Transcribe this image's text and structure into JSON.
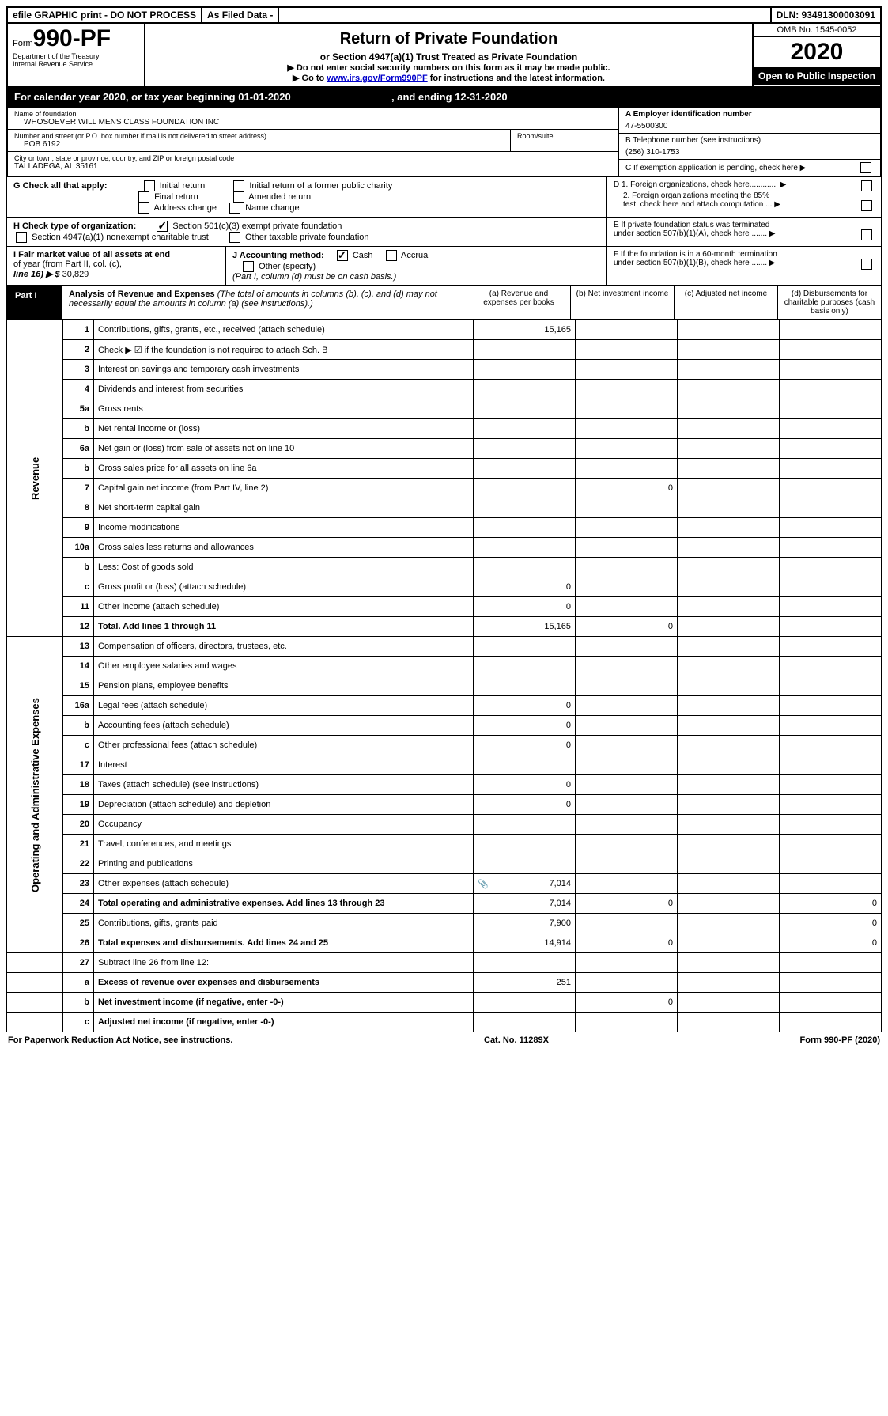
{
  "topbar": {
    "efile": "efile GRAPHIC print - DO NOT PROCESS",
    "asfiled": "As Filed Data -",
    "dln": "DLN: 93491300003091"
  },
  "header": {
    "form_prefix": "Form",
    "form_num": "990-PF",
    "dept1": "Department of the Treasury",
    "dept2": "Internal Revenue Service",
    "title": "Return of Private Foundation",
    "subtitle": "or Section 4947(a)(1) Trust Treated as Private Foundation",
    "warn": "▶ Do not enter social security numbers on this form as it may be made public.",
    "goto_pre": "▶ Go to ",
    "goto_link": "www.irs.gov/Form990PF",
    "goto_post": " for instructions and the latest information.",
    "omb": "OMB No. 1545-0052",
    "year": "2020",
    "open": "Open to Public Inspection"
  },
  "calyear": {
    "text_a": "For calendar year 2020, or tax year beginning ",
    "begin": "01-01-2020",
    "text_b": " , and ending ",
    "end": "12-31-2020"
  },
  "info": {
    "name_lbl": "Name of foundation",
    "name": "WHOSOEVER WILL MENS CLASS FOUNDATION INC",
    "addr_lbl": "Number and street (or P.O. box number if mail is not delivered to street address)",
    "addr": "POB 6192",
    "room_lbl": "Room/suite",
    "city_lbl": "City or town, state or province, country, and ZIP or foreign postal code",
    "city": "TALLADEGA, AL  35161",
    "a_lbl": "A Employer identification number",
    "a_val": "47-5500300",
    "b_lbl": "B Telephone number (see instructions)",
    "b_val": "(256) 310-1753",
    "c_lbl": "C If exemption application is pending, check here ▶"
  },
  "g": {
    "lbl": "G Check all that apply:",
    "o1": "Initial return",
    "o2": "Initial return of a former public charity",
    "o3": "Final return",
    "o4": "Amended return",
    "o5": "Address change",
    "o6": "Name change"
  },
  "h": {
    "lbl": "H Check type of organization:",
    "o1": "Section 501(c)(3) exempt private foundation",
    "o2": "Section 4947(a)(1) nonexempt charitable trust",
    "o3": "Other taxable private foundation"
  },
  "i": {
    "lbl1": "I Fair market value of all assets at end",
    "lbl2": "of year (from Part II, col. (c),",
    "lbl3": "line 16) ▶ $",
    "val": "30,829"
  },
  "j": {
    "lbl": "J Accounting method:",
    "o1": "Cash",
    "o2": "Accrual",
    "o3": "Other (specify)",
    "note": "(Part I, column (d) must be on cash basis.)"
  },
  "right": {
    "d1": "D 1. Foreign organizations, check here............. ▶",
    "d2a": "2. Foreign organizations meeting the 85%",
    "d2b": "test, check here and attach computation ... ▶",
    "e1": "E If private foundation status was terminated",
    "e2": "under section 507(b)(1)(A), check here ....... ▶",
    "f1": "F If the foundation is in a 60-month termination",
    "f2": "under section 507(b)(1)(B), check here ....... ▶"
  },
  "part1": {
    "tag": "Part I",
    "title": "Analysis of Revenue and Expenses",
    "note": "(The total of amounts in columns (b), (c), and (d) may not necessarily equal the amounts in column (a) (see instructions).)",
    "colA": "(a) Revenue and expenses per books",
    "colB": "(b) Net investment income",
    "colC": "(c) Adjusted net income",
    "colD": "(d) Disbursements for charitable purposes (cash basis only)"
  },
  "sections": {
    "revenue": "Revenue",
    "opex": "Operating and Administrative Expenses"
  },
  "rows": [
    {
      "n": "1",
      "d": "Contributions, gifts, grants, etc., received (attach schedule)",
      "a": "15,165"
    },
    {
      "n": "2",
      "d": "Check ▶ ☑ if the foundation is not required to attach Sch. B"
    },
    {
      "n": "3",
      "d": "Interest on savings and temporary cash investments"
    },
    {
      "n": "4",
      "d": "Dividends and interest from securities"
    },
    {
      "n": "5a",
      "d": "Gross rents"
    },
    {
      "n": "b",
      "d": "Net rental income or (loss)"
    },
    {
      "n": "6a",
      "d": "Net gain or (loss) from sale of assets not on line 10"
    },
    {
      "n": "b",
      "d": "Gross sales price for all assets on line 6a"
    },
    {
      "n": "7",
      "d": "Capital gain net income (from Part IV, line 2)",
      "b": "0"
    },
    {
      "n": "8",
      "d": "Net short-term capital gain"
    },
    {
      "n": "9",
      "d": "Income modifications"
    },
    {
      "n": "10a",
      "d": "Gross sales less returns and allowances"
    },
    {
      "n": "b",
      "d": "Less: Cost of goods sold"
    },
    {
      "n": "c",
      "d": "Gross profit or (loss) (attach schedule)",
      "a": "0"
    },
    {
      "n": "11",
      "d": "Other income (attach schedule)",
      "a": "0"
    },
    {
      "n": "12",
      "d": "Total. Add lines 1 through 11",
      "bold": true,
      "a": "15,165",
      "b": "0"
    }
  ],
  "rows2": [
    {
      "n": "13",
      "d": "Compensation of officers, directors, trustees, etc."
    },
    {
      "n": "14",
      "d": "Other employee salaries and wages"
    },
    {
      "n": "15",
      "d": "Pension plans, employee benefits"
    },
    {
      "n": "16a",
      "d": "Legal fees (attach schedule)",
      "a": "0"
    },
    {
      "n": "b",
      "d": "Accounting fees (attach schedule)",
      "a": "0"
    },
    {
      "n": "c",
      "d": "Other professional fees (attach schedule)",
      "a": "0"
    },
    {
      "n": "17",
      "d": "Interest"
    },
    {
      "n": "18",
      "d": "Taxes (attach schedule) (see instructions)",
      "a": "0"
    },
    {
      "n": "19",
      "d": "Depreciation (attach schedule) and depletion",
      "a": "0"
    },
    {
      "n": "20",
      "d": "Occupancy"
    },
    {
      "n": "21",
      "d": "Travel, conferences, and meetings"
    },
    {
      "n": "22",
      "d": "Printing and publications"
    },
    {
      "n": "23",
      "d": "Other expenses (attach schedule)",
      "a": "7,014",
      "icon": true
    },
    {
      "n": "24",
      "d": "Total operating and administrative expenses. Add lines 13 through 23",
      "bold": true,
      "a": "7,014",
      "b": "0",
      "dd": "0"
    },
    {
      "n": "25",
      "d": "Contributions, gifts, grants paid",
      "a": "7,900",
      "dd": "0"
    },
    {
      "n": "26",
      "d": "Total expenses and disbursements. Add lines 24 and 25",
      "bold": true,
      "a": "14,914",
      "b": "0",
      "dd": "0"
    }
  ],
  "rows3": [
    {
      "n": "27",
      "d": "Subtract line 26 from line 12:"
    },
    {
      "n": "a",
      "d": "Excess of revenue over expenses and disbursements",
      "bold": true,
      "a": "251"
    },
    {
      "n": "b",
      "d": "Net investment income (if negative, enter -0-)",
      "bold": true,
      "b": "0"
    },
    {
      "n": "c",
      "d": "Adjusted net income (if negative, enter -0-)",
      "bold": true
    }
  ],
  "footer": {
    "left": "For Paperwork Reduction Act Notice, see instructions.",
    "mid": "Cat. No. 11289X",
    "right": "Form 990-PF (2020)"
  }
}
